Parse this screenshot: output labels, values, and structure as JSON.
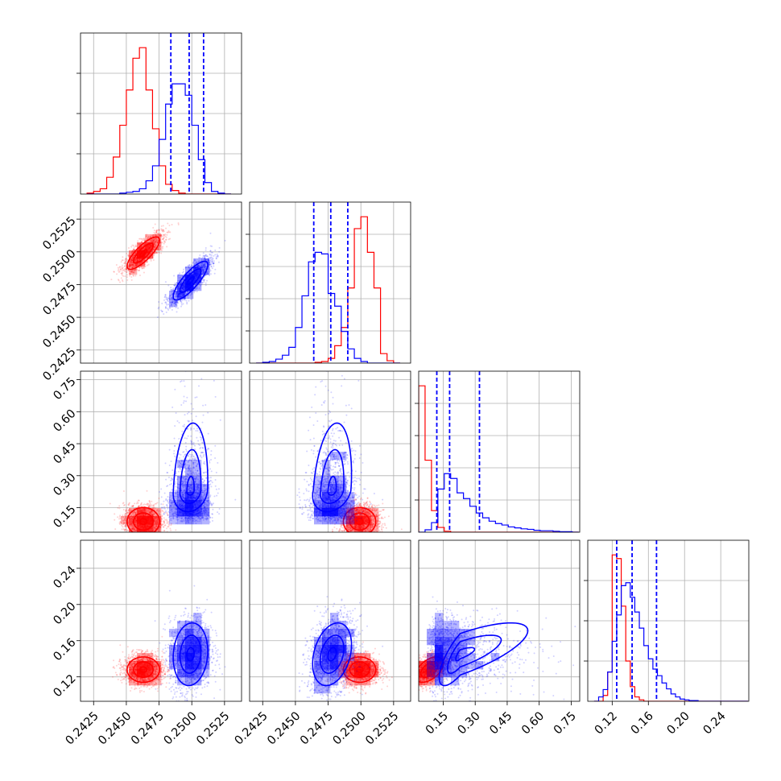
{
  "chart_data": {
    "type": "corner",
    "title": "",
    "grid": true,
    "series": [
      {
        "color": "#ff0000"
      },
      {
        "color": "#0000ff"
      }
    ],
    "variables": [
      {
        "label": "",
        "range": [
          0.2415,
          0.2538
        ],
        "ticks": [
          "0.2425",
          "0.2450",
          "0.2475",
          "0.2500",
          "0.2525"
        ]
      },
      {
        "label": "",
        "range": [
          0.2415,
          0.2538
        ],
        "ticks": [
          "0.2425",
          "0.2450",
          "0.2475",
          "0.2500",
          "0.2525"
        ]
      },
      {
        "label": "",
        "range": [
          0.035,
          0.79
        ],
        "ticks": [
          "0.15",
          "0.30",
          "0.45",
          "0.60",
          "0.75"
        ]
      },
      {
        "label": "",
        "range": [
          0.093,
          0.271
        ],
        "ticks": [
          "0.12",
          "0.16",
          "0.20",
          "0.24"
        ]
      }
    ],
    "diag_hist_ticks": [
      4,
      5,
      5,
      4
    ],
    "quantiles": [
      [
        0.2484,
        0.2498,
        0.2509
      ],
      [
        0.2464,
        0.2477,
        0.249
      ],
      [
        0.12,
        0.18,
        0.32
      ],
      [
        0.125,
        0.142,
        0.169
      ]
    ],
    "histograms": [
      {
        "bin_edges": [
          0.242,
          0.2425,
          0.243,
          0.2435,
          0.244,
          0.2445,
          0.245,
          0.2455,
          0.246,
          0.2465,
          0.247,
          0.2475,
          0.248,
          0.2485,
          0.249,
          0.2495,
          0.25,
          0.2505,
          0.251,
          0.2515,
          0.252,
          0.2525,
          0.253
        ],
        "counts": [
          [
            1,
            3,
            6,
            19,
            42,
            78,
            118,
            154,
            166,
            118,
            74,
            32,
            11,
            4,
            1,
            0,
            0,
            0,
            0,
            0,
            0,
            0
          ],
          [
            0,
            0,
            0,
            0,
            0,
            1,
            2,
            3,
            6,
            15,
            32,
            62,
            102,
            125,
            125,
            112,
            78,
            39,
            13,
            3,
            1,
            0
          ]
        ]
      },
      {
        "bin_edges": [
          0.242,
          0.2425,
          0.243,
          0.2435,
          0.244,
          0.2445,
          0.245,
          0.2455,
          0.246,
          0.2465,
          0.247,
          0.2475,
          0.248,
          0.2485,
          0.249,
          0.2495,
          0.25,
          0.2505,
          0.251,
          0.2515,
          0.252,
          0.2525,
          0.253
        ],
        "counts": [
          [
            0,
            0,
            0,
            0,
            0,
            0,
            0,
            0,
            0,
            1,
            2,
            6,
            22,
            45,
            95,
            170,
            185,
            140,
            95,
            12,
            3,
            0
          ],
          [
            0,
            1,
            2,
            5,
            10,
            20,
            45,
            85,
            128,
            140,
            138,
            88,
            72,
            40,
            18,
            6,
            2,
            0,
            0,
            0,
            0,
            0
          ]
        ]
      },
      {
        "bin_edges": [
          0.035,
          0.065,
          0.095,
          0.125,
          0.155,
          0.185,
          0.215,
          0.245,
          0.275,
          0.305,
          0.335,
          0.365,
          0.395,
          0.425,
          0.455,
          0.485,
          0.515,
          0.545,
          0.575,
          0.605,
          0.635,
          0.665,
          0.695,
          0.725,
          0.755,
          0.785
        ],
        "counts": [
          [
            305,
            150,
            45,
            10,
            2,
            0,
            0,
            0,
            0,
            0,
            0,
            0,
            0,
            0,
            0,
            0,
            0,
            0,
            0,
            0,
            0,
            0,
            0,
            0,
            0
          ],
          [
            0,
            5,
            20,
            90,
            122,
            112,
            82,
            70,
            54,
            40,
            30,
            23,
            18,
            15,
            11,
            9,
            7,
            6,
            4,
            3,
            3,
            2,
            1,
            1,
            0
          ]
        ]
      },
      {
        "bin_edges": [
          0.1,
          0.105,
          0.11,
          0.115,
          0.12,
          0.125,
          0.13,
          0.135,
          0.14,
          0.145,
          0.15,
          0.155,
          0.16,
          0.165,
          0.17,
          0.175,
          0.18,
          0.185,
          0.19,
          0.195,
          0.2,
          0.205,
          0.21,
          0.215,
          0.22,
          0.225,
          0.23,
          0.235,
          0.24,
          0.245,
          0.25,
          0.255,
          0.26,
          0.265,
          0.27
        ],
        "counts": [
          [
            0,
            0,
            8,
            40,
            200,
            195,
            130,
            55,
            20,
            6,
            2,
            0,
            0,
            0,
            0,
            0,
            0,
            0,
            0,
            0,
            0,
            0,
            0,
            0,
            0,
            0,
            0,
            0,
            0,
            0,
            0,
            0,
            0,
            0
          ],
          [
            0,
            6,
            16,
            40,
            82,
            118,
            158,
            162,
            142,
            122,
            100,
            76,
            58,
            44,
            35,
            25,
            17,
            10,
            6,
            3,
            2,
            1,
            1,
            0,
            0,
            0,
            0,
            0,
            0,
            0,
            0,
            0,
            0,
            0
          ]
        ]
      }
    ],
    "distributions": [
      {
        "mean": [
          0.2463,
          0.2499,
          0.085,
          0.128
        ],
        "sd": [
          0.00075,
          0.00075,
          0.04,
          0.0085
        ],
        "corr": [
          [
            1,
            0.8,
            0,
            0
          ],
          [
            0.8,
            1,
            0,
            0
          ],
          [
            0,
            0,
            1,
            0.5
          ],
          [
            0,
            0,
            0.5,
            1
          ]
        ]
      },
      {
        "mean": [
          0.2499,
          0.2478,
          0.23,
          0.145
        ],
        "sd": [
          0.0008,
          0.0009,
          0.12,
          0.021
        ],
        "corr": [
          [
            1,
            0.82,
            0.15,
            0.1
          ],
          [
            0.82,
            1,
            0.25,
            0.3
          ],
          [
            0.15,
            0.25,
            1,
            0.75
          ],
          [
            0.1,
            0.3,
            0.75,
            1
          ]
        ]
      }
    ]
  }
}
